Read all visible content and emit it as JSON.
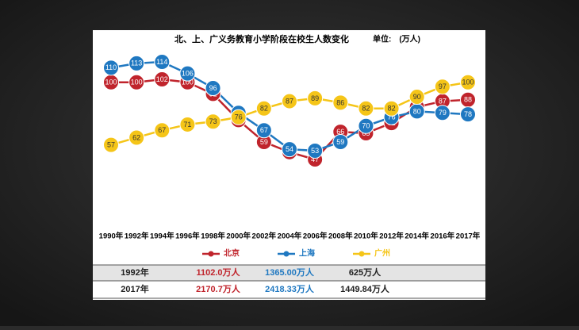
{
  "chart_data": {
    "type": "line",
    "title": "北、上、广义务教育小学阶段在校生人数变化",
    "subtitle": "单位:　(万人)",
    "categories": [
      "1990年",
      "1992年",
      "1994年",
      "1996年",
      "1998年",
      "2000年",
      "2002年",
      "2004年",
      "2006年",
      "2008年",
      "2010年",
      "2012年",
      "2014年",
      "2016年",
      "2017年"
    ],
    "series": [
      {
        "name": "北京",
        "color": "#c0242c",
        "values": [
          100,
          100,
          102,
          100,
          92,
          74,
          59,
          52,
          47,
          66,
          65,
          72,
          83,
          87,
          88
        ]
      },
      {
        "name": "上海",
        "color": "#1f78c1",
        "values": [
          110,
          113,
          114,
          106,
          96,
          79,
          67,
          54,
          53,
          59,
          70,
          76,
          80,
          79,
          78
        ]
      },
      {
        "name": "广州",
        "color": "#f5c518",
        "values": [
          57,
          62,
          67,
          71,
          73,
          76,
          82,
          87,
          89,
          86,
          82,
          82,
          90,
          97,
          100
        ]
      }
    ]
  },
  "table": {
    "rows": [
      [
        "1992年",
        "1102.0万人",
        "1365.00万人",
        "625万人"
      ],
      [
        "2017年",
        "2170.7万人",
        "2418.33万人",
        "1449.84万人"
      ]
    ]
  }
}
